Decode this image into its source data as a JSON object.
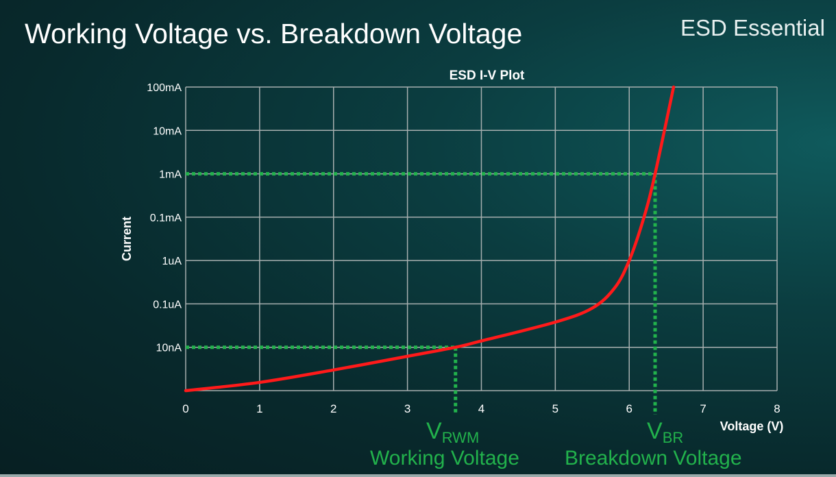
{
  "slide": {
    "title": "Working Voltage vs. Breakdown Voltage",
    "brand": "ESD Essential"
  },
  "chart_data": {
    "type": "line",
    "title": "ESD I-V Plot",
    "xlabel": "Voltage (V)",
    "ylabel": "Current",
    "xlim": [
      0,
      8
    ],
    "x_ticks": [
      "0",
      "1",
      "2",
      "3",
      "4",
      "5",
      "6",
      "7",
      "8"
    ],
    "y_scale": "log",
    "y_ticks": [
      {
        "label": "",
        "value": 1e-09
      },
      {
        "label": "10nA",
        "value": 1e-08
      },
      {
        "label": "0.1uA",
        "value": 1e-07
      },
      {
        "label": "1uA",
        "value": 1e-06
      },
      {
        "label": "0.1mA",
        "value": 0.0001
      },
      {
        "label": "1mA",
        "value": 0.001
      },
      {
        "label": "10mA",
        "value": 0.01
      },
      {
        "label": "100mA",
        "value": 0.1
      }
    ],
    "grid": true,
    "series": [
      {
        "color": "#ff1a1a",
        "x": [
          0,
          1,
          2,
          3,
          3.65,
          4,
          5,
          5.5,
          5.8,
          6.0,
          6.2,
          6.35,
          6.6
        ],
        "y": [
          1e-09,
          1.55e-09,
          3e-09,
          6.2e-09,
          1e-08,
          1.4e-08,
          3.8e-08,
          8e-08,
          2.3e-07,
          1e-06,
          0.0001,
          0.001,
          0.1
        ]
      }
    ],
    "annotations": [
      {
        "voltage": 3.65,
        "current": 1e-08,
        "symbol": "V",
        "subscript": "RWM",
        "label": "Working Voltage",
        "color": "#22b24c"
      },
      {
        "voltage": 6.35,
        "current": 0.001,
        "symbol": "V",
        "subscript": "BR",
        "label": "Breakdown Voltage",
        "color": "#22b24c"
      }
    ],
    "colors": {
      "grid": "#a8b0b0",
      "text": "#ffffff",
      "marker_lines": "#22b24c"
    }
  }
}
